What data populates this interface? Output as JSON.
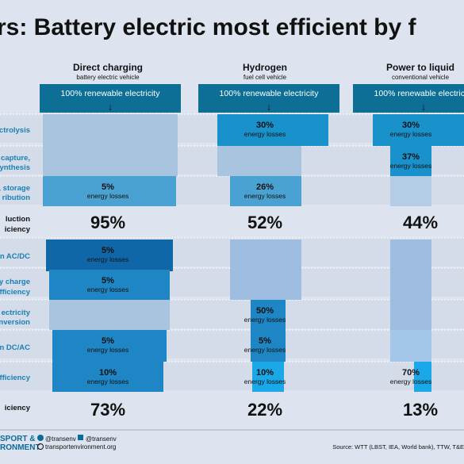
{
  "title": "rs: Battery electric most efficient by f",
  "colors": {
    "background": "#dde4ef",
    "row_band": "#d4dcea",
    "header_box": "#0e6f96",
    "direct_a": "#0f67a8",
    "direct_b": "#1e86c4",
    "loss_medium": "#4aa2d2",
    "loss_h2": "#1991ca",
    "loss_light": "#a9c4de",
    "pale": "#9ebde0",
    "bright": "#1aa8e8",
    "efficiency_text": "#111111",
    "row_label": "#1a7fb5",
    "footer_text": "#0a6b9a"
  },
  "header_box_label": "100% renewable electricity",
  "down_arrow": "↓",
  "row_labels": [
    "ctrolysis",
    "capture,",
    "synthesis",
    ", storage",
    "ribution",
    "luction",
    "iciency",
    "on AC/DC",
    "y charge",
    "fficiency",
    "ectricity",
    "nversion",
    "on DC/AC",
    "fficiency",
    "iciency"
  ],
  "chart_data": {
    "type": "table",
    "title": "rs: Battery electric most efficient by f",
    "columns": [
      {
        "name": "Direct charging",
        "subtitle": "battery electric vehicle"
      },
      {
        "name": "Hydrogen",
        "subtitle": "fuel cell vehicle"
      },
      {
        "name": "Power to liquid",
        "subtitle": "conventional vehicle"
      }
    ],
    "stages": [
      {
        "values": [
          "",
          "30%",
          "30%"
        ],
        "labels": [
          "",
          "energy losses",
          "energy losses"
        ]
      },
      {
        "values": [
          "",
          "",
          "37%"
        ],
        "labels": [
          "",
          "",
          "energy losses"
        ]
      },
      {
        "values": [
          "5%",
          "26%",
          ""
        ],
        "labels": [
          "energy losses",
          "energy losses",
          ""
        ]
      },
      {
        "values": [
          "5%",
          "",
          ""
        ],
        "labels": [
          "energy losses",
          "",
          ""
        ]
      },
      {
        "values": [
          "5%",
          "",
          ""
        ],
        "labels": [
          "energy losses",
          "",
          ""
        ]
      },
      {
        "values": [
          "",
          "50%",
          ""
        ],
        "labels": [
          "",
          "energy losses",
          ""
        ]
      },
      {
        "values": [
          "5%",
          "5%",
          ""
        ],
        "labels": [
          "energy losses",
          "energy losses",
          ""
        ]
      },
      {
        "values": [
          "10%",
          "10%",
          "70%"
        ],
        "labels": [
          "energy losses",
          "energy losses",
          "energy losses"
        ]
      }
    ],
    "production_efficiency": [
      "95%",
      "52%",
      "44%"
    ],
    "overall_efficiency": [
      "73%",
      "22%",
      "13%"
    ]
  },
  "footer": {
    "org_line1": "SPORT &",
    "org_line2": "RONMENT",
    "twitter": "@transenv",
    "facebook": "@transenv",
    "website": "transportenvironment.org",
    "source": "Source: WTT (LBST, IEA, World bank), TTW, T&E"
  }
}
